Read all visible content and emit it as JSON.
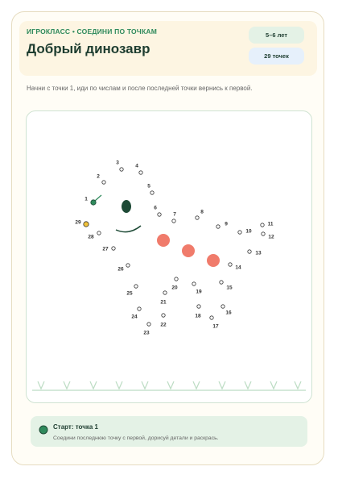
{
  "header": {
    "kicker": "ИГРОКЛАСС • СОЕДИНИ ПО ТОЧКАМ",
    "title": "Добрый динозавр",
    "age": "5–6 лет",
    "count": "29 точек"
  },
  "instruction": "Начни с точки 1, иди по числам и после последней точки вернись к первой.",
  "dots": [
    1,
    2,
    3,
    4,
    5,
    6,
    7,
    8,
    9,
    10,
    11,
    12,
    13,
    14,
    15,
    16,
    17,
    18,
    19,
    20,
    21,
    22,
    23,
    24,
    25,
    26,
    27,
    28,
    29
  ],
  "footer": {
    "title": "Старт: точка 1",
    "text": "Соедини последнюю точку с первой, дорисуй детали и раскрась."
  }
}
